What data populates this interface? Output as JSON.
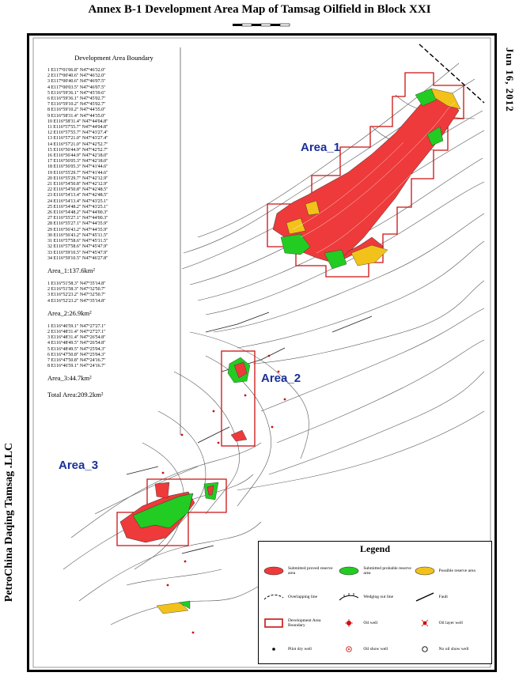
{
  "title": "Annex B-1  Development Area Map of Tamsag Oilfield in Block XXI",
  "date": "Jun 16, 2012",
  "company": "PetroChina Daqing Tamsag .LLC",
  "boundary": {
    "header": "Development Area Boundary",
    "area1_points": [
      "1 E117°01'06.8\" N47°46'32.0\"",
      "2 E117°00'40.6\" N47°46'32.0\"",
      "3 E117°00'40.6\" N47°46'07.5\"",
      "4 E117°00'03.5\" N47°46'07.5\"",
      "5 E116°59'36.1\" N47°45'39.6\"",
      "6 E116°59'36.1\" N47°45'02.7\"",
      "7 E116°59'10.2\" N47°45'02.7\"",
      "8 E116°59'10.2\" N47°44'35.0\"",
      "9 E116°58'31.4\" N47°44'35.0\"",
      "10 E116°58'31.4\" N47°44'04.8\"",
      "11 E116°57'55.7\" N47°44'04.8\"",
      "12 E116°57'55.7\" N47°43'27.4\"",
      "13 E116°57'21.0\" N47°43'27.4\"",
      "14 E116°57'21.0\" N47°42'52.7\"",
      "15 E116°56'44.9\" N47°42'52.7\"",
      "16 E116°56'44.9\" N47°42'18.0\"",
      "17 E116°56'05.3\" N47°42'18.0\"",
      "18 E116°56'05.3\" N47°41'44.6\"",
      "19 E116°55'29.7\" N47°41'44.6\"",
      "20 E116°55'29.7\" N47°42'12.9\"",
      "21 E116°54'50.8\" N47°42'12.9\"",
      "22 E116°54'50.8\" N47°42'48.5\"",
      "23 E116°54'13.4\" N47°42'48.5\"",
      "24 E116°54'13.4\" N47°43'25.1\"",
      "25 E116°54'48.2\" N47°43'25.1\"",
      "26 E116°54'48.2\" N47°44'00.3\"",
      "27 E116°55'27.1\" N47°44'00.3\"",
      "28 E116°55'27.1\" N47°44'35.9\"",
      "29 E116°56'43.2\" N47°44'35.9\"",
      "30 E116°56'43.2\" N47°45'11.5\"",
      "31 E116°57'58.6\" N47°45'11.5\"",
      "32 E116°57'58.6\" N47°45'47.9\"",
      "33 E116°59'10.5\" N47°45'47.9\"",
      "34 E116°59'10.5\" N47°46'27.8\""
    ],
    "area1_text": "Area_1:137.6km²",
    "area2_points": [
      "1 E116°51'58.3\" N47°35'14.8\"",
      "2 E116°51'58.3\" N47°32'50.7\"",
      "3 E116°52'23.2\" N47°32'50.7\"",
      "4 E116°52'23.2\" N47°35'14.8\""
    ],
    "area2_text": "Area_2:26.9km²",
    "area3_points": [
      "1 E116°46'59.1\" N47°27'27.1\"",
      "2 E116°48'31.4\" N47°27'27.1\"",
      "3 E116°48'31.4\" N47°26'54.8\"",
      "4 E116°48'49.5\" N47°26'54.8\"",
      "5 E116°48'49.5\" N47°25'04.3\"",
      "6 E116°47'50.8\" N47°25'04.3\"",
      "7 E116°47'50.8\" N47°24'16.7\"",
      "8 E116°46'59.1\" N47°24'16.7\""
    ],
    "area3_text": "Area_3:44.7km²",
    "total_text": "Total Area:209.2km²"
  },
  "map_labels": {
    "area1": "Area_1",
    "area2": "Area_2",
    "area3": "Area_3"
  },
  "legend": {
    "title": "Legend",
    "items": [
      {
        "label": "Submitted proved reserve area",
        "symbol": "fill",
        "color": "#ee3a3a"
      },
      {
        "label": "Submitted probable reserve area",
        "symbol": "fill",
        "color": "#22cc22"
      },
      {
        "label": "Possible reserve area",
        "symbol": "fill",
        "color": "#f2c21a"
      },
      {
        "label": "Overlapping line",
        "symbol": "line-dash"
      },
      {
        "label": "Wedging out line",
        "symbol": "line-tick"
      },
      {
        "label": "Fault",
        "symbol": "line-fault"
      },
      {
        "label": "Development Area Boundary",
        "symbol": "rect",
        "color": "#cc1111"
      },
      {
        "label": "Oil well",
        "symbol": "oilwell",
        "color": "#cc1111"
      },
      {
        "label": "Oil layer well",
        "symbol": "oillayer",
        "color": "#cc1111"
      },
      {
        "label": "Pilot dry well",
        "symbol": "dot"
      },
      {
        "label": "Oil show well",
        "symbol": "ring",
        "color": "#cc1111"
      },
      {
        "label": "No oil show well",
        "symbol": "circle"
      }
    ]
  },
  "colors": {
    "proved": "#ee3a3a",
    "probable": "#22cc22",
    "possible": "#f2c21a",
    "boundary": "#cc1111",
    "label": "#1a2f9a"
  }
}
